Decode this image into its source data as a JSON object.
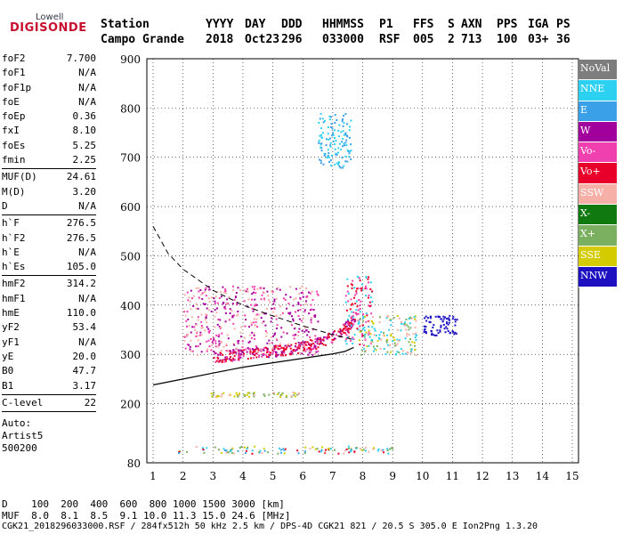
{
  "logo": {
    "top": "Lowell",
    "main": "DIGISONDE"
  },
  "header": {
    "line1": [
      "Station",
      "YYYY",
      "DAY",
      "DDD",
      "HHMMSS",
      "P1",
      "FFS",
      "S",
      "AXN",
      "PPS",
      "IGA",
      "PS"
    ],
    "line2": [
      "Campo Grande",
      "2018",
      "Oct23",
      "296",
      "033000",
      "RSF",
      "005",
      "2",
      "713",
      "100",
      "03+",
      "36"
    ]
  },
  "params": {
    "group1": [
      [
        "foF2",
        "7.700"
      ],
      [
        "foF1",
        "N/A"
      ],
      [
        "foF1p",
        "N/A"
      ],
      [
        "foE",
        "N/A"
      ],
      [
        "foEp",
        "0.36"
      ],
      [
        "fxI",
        "8.10"
      ],
      [
        "foEs",
        "5.25"
      ],
      [
        "fmin",
        "2.25"
      ]
    ],
    "group2": [
      [
        "MUF(D)",
        "24.61"
      ],
      [
        "M(D)",
        "3.20"
      ],
      [
        "D",
        "N/A"
      ]
    ],
    "group3": [
      [
        "h`F",
        "276.5"
      ],
      [
        "h`F2",
        "276.5"
      ],
      [
        "h`E",
        "N/A"
      ],
      [
        "h`Es",
        "105.0"
      ]
    ],
    "group4": [
      [
        "hmF2",
        "314.2"
      ],
      [
        "hmF1",
        "N/A"
      ],
      [
        "hmE",
        "110.0"
      ],
      [
        "yF2",
        "53.4"
      ],
      [
        "yF1",
        "N/A"
      ],
      [
        "yE",
        "20.0"
      ],
      [
        "B0",
        "47.7"
      ],
      [
        "B1",
        "3.17"
      ]
    ],
    "group5": [
      [
        "C-level",
        "22"
      ]
    ],
    "autoscaling": [
      "Auto:",
      "Artist5",
      "500200"
    ]
  },
  "legend": [
    {
      "label": "NoVal",
      "color": "#7d7d7d"
    },
    {
      "label": "NNE",
      "color": "#2cd0f0"
    },
    {
      "label": "E",
      "color": "#3aa0e8"
    },
    {
      "label": "W",
      "color": "#a2009c"
    },
    {
      "label": "Vo-",
      "color": "#f040b0"
    },
    {
      "label": "Vo+",
      "color": "#e8002a"
    },
    {
      "label": "SSW",
      "color": "#f6b0a8"
    },
    {
      "label": "X-",
      "color": "#107a10"
    },
    {
      "label": "X+",
      "color": "#7ab060"
    },
    {
      "label": "SSE",
      "color": "#d4cc00"
    },
    {
      "label": "NNW",
      "color": "#1c10c0"
    }
  ],
  "footer": {
    "d_row": "D    100  200  400  600  800 1000 1500 3000 [km]",
    "muf_row": "MUF  8.0  8.1  8.5  9.1 10.0 11.3 15.0 24.6 [MHz]",
    "info": "CGK21_2018296033000.RSF / 284fx512h 50 kHz 2.5 km / DPS-4D CGK21 821 / 20.5 S 305.0 E Ion2Png 1.3.20"
  },
  "chart_data": {
    "type": "scatter",
    "xlabel": "",
    "ylabel": "",
    "xlim": [
      1,
      15
    ],
    "ylim": [
      80,
      900
    ],
    "x_ticks": [
      1,
      2,
      3,
      4,
      5,
      6,
      7,
      8,
      9,
      10,
      11,
      12,
      13,
      14,
      15
    ],
    "y_ticks": [
      80,
      200,
      300,
      400,
      500,
      600,
      700,
      800,
      900
    ],
    "grid": "dotted vertical and horizontal",
    "profile_curve": [
      [
        1.0,
        238
      ],
      [
        2.0,
        250
      ],
      [
        3.0,
        262
      ],
      [
        4.0,
        274
      ],
      [
        5.0,
        283
      ],
      [
        6.0,
        292
      ],
      [
        7.0,
        301
      ],
      [
        7.4,
        306
      ],
      [
        7.7,
        314
      ]
    ],
    "nh_dashed_curve": [
      [
        1.0,
        560
      ],
      [
        1.5,
        505
      ],
      [
        2.0,
        473
      ],
      [
        3.0,
        430
      ],
      [
        4.0,
        400
      ],
      [
        5.0,
        378
      ],
      [
        6.0,
        358
      ],
      [
        7.0,
        340
      ],
      [
        7.7,
        330
      ]
    ],
    "echo_clusters": [
      {
        "name": "Es trace",
        "x": [
          1.8,
          9.0
        ],
        "y": [
          100,
          115
        ],
        "colors": [
          "#f6b0a8",
          "#d4cc00",
          "#2cd0f0",
          "#e8002a",
          "#7ab060",
          "#3aa0e8"
        ]
      },
      {
        "name": "Es multiple",
        "x": [
          2.9,
          5.9
        ],
        "y": [
          215,
          225
        ],
        "colors": [
          "#d4cc00",
          "#7ab060",
          "#f6b0a8"
        ]
      },
      {
        "name": "F O-trace",
        "x": [
          3.0,
          7.8
        ],
        "y": [
          292,
          380
        ],
        "colors": [
          "#e8002a",
          "#e8002a",
          "#f040b0",
          "#a2009c"
        ]
      },
      {
        "name": "F cusp",
        "x": [
          7.4,
          8.3
        ],
        "y": [
          320,
          460
        ],
        "colors": [
          "#e8002a",
          "#f040b0",
          "#2cd0f0"
        ]
      },
      {
        "name": "F X-trace",
        "x": [
          7.8,
          9.8
        ],
        "y": [
          300,
          380
        ],
        "colors": [
          "#d4cc00",
          "#f6b0a8",
          "#7ab060",
          "#2cd0f0"
        ]
      },
      {
        "name": "spread",
        "x": [
          2.0,
          6.5
        ],
        "y": [
          300,
          440
        ],
        "colors": [
          "#f6b0a8",
          "#a2009c",
          "#f040b0"
        ]
      },
      {
        "name": "NNW cluster",
        "x": [
          10.0,
          11.2
        ],
        "y": [
          340,
          380
        ],
        "colors": [
          "#1c10c0"
        ]
      },
      {
        "name": "high echoes",
        "x": [
          6.5,
          7.6
        ],
        "y": [
          680,
          790
        ],
        "colors": [
          "#2cd0f0",
          "#3aa0e8"
        ]
      }
    ]
  }
}
